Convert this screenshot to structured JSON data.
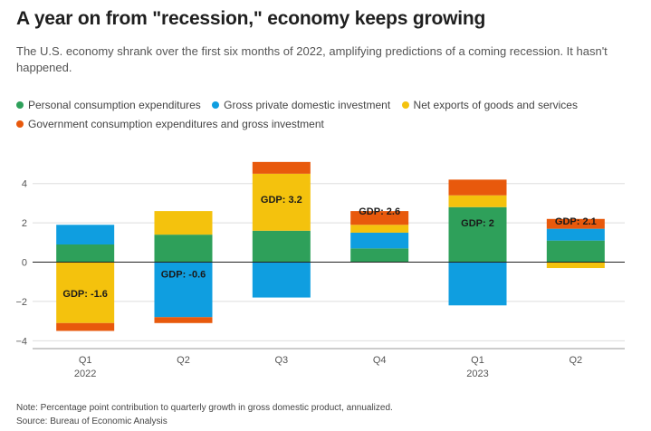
{
  "title": "A year on from \"recession,\" economy keeps growing",
  "subtitle": "The U.S. economy shrank over the first six months of 2022, amplifying predictions of a coming recession. It hasn't happened.",
  "note": "Note: Percentage point contribution to quarterly growth in gross domestic product, annualized.",
  "source": "Source: Bureau of Economic Analysis",
  "colors": {
    "personal": "#2ea05a",
    "investment": "#0f9ee0",
    "net_exports": "#f4c20d",
    "government": "#e8590c"
  },
  "chart_data": {
    "type": "bar",
    "stacked": true,
    "categories": [
      "Q1",
      "Q2",
      "Q3",
      "Q4",
      "Q1",
      "Q2"
    ],
    "year_labels": [
      "2022",
      "",
      "",
      "",
      "2023",
      ""
    ],
    "ylim": [
      -4.4,
      5.6
    ],
    "yticks": [
      4,
      2,
      0,
      -2,
      -4
    ],
    "ytick_labels": [
      "4",
      "2",
      "0",
      "−2",
      "−4"
    ],
    "grid": true,
    "legend_position": "top",
    "series": [
      {
        "name": "Personal consumption expenditures",
        "color_key": "personal",
        "values": [
          0.9,
          1.4,
          1.6,
          0.7,
          2.8,
          1.1
        ]
      },
      {
        "name": "Gross private domestic investment",
        "color_key": "investment",
        "values": [
          1.0,
          -2.8,
          -1.8,
          0.8,
          -2.2,
          0.6
        ]
      },
      {
        "name": "Net exports of goods and services",
        "color_key": "net_exports",
        "values": [
          -3.1,
          1.2,
          2.9,
          0.4,
          0.6,
          -0.3
        ]
      },
      {
        "name": "Government consumption expenditures and gross investment",
        "color_key": "government",
        "values": [
          -0.4,
          -0.3,
          0.6,
          0.7,
          0.8,
          0.5
        ]
      }
    ],
    "gdp_labels": [
      "GDP: -1.6",
      "GDP: -0.6",
      "GDP: 3.2",
      "GDP: 2.6",
      "GDP: 2",
      "GDP: 2.1"
    ],
    "gdp_values": [
      -1.6,
      -0.6,
      3.2,
      2.6,
      2.0,
      2.1
    ]
  }
}
